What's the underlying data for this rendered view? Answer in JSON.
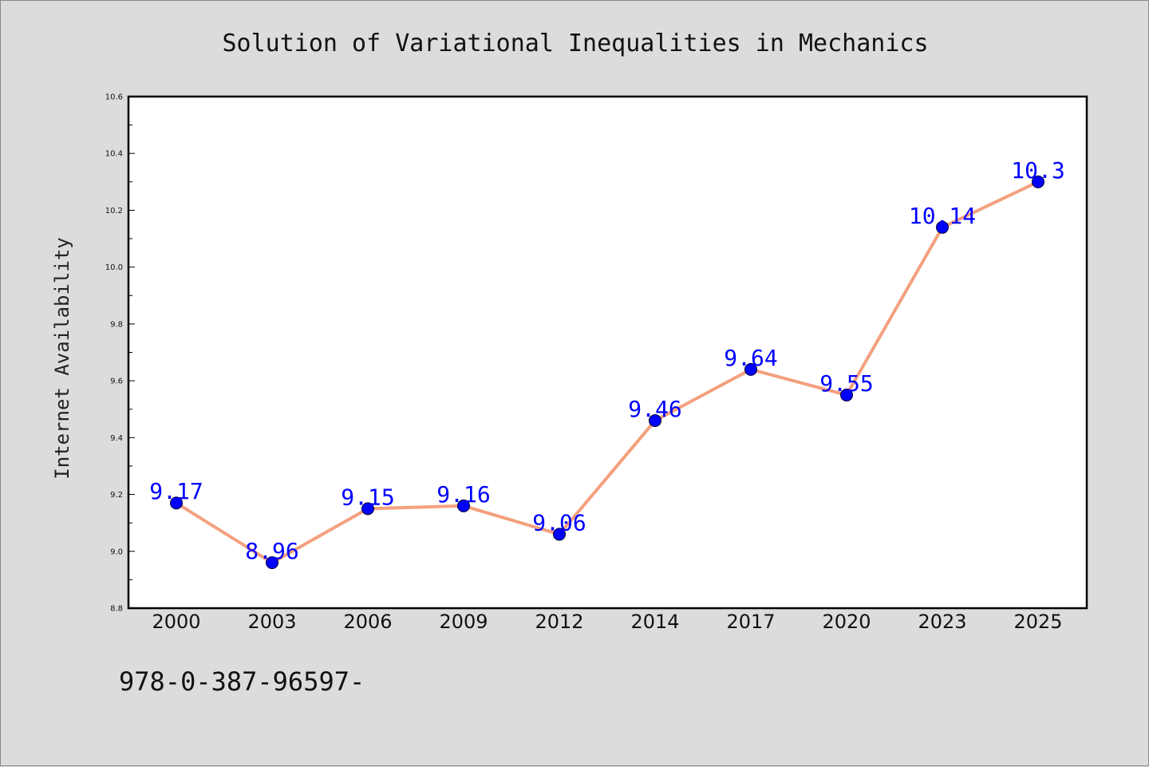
{
  "chart_data": {
    "type": "line",
    "title": "Solution of Variational Inequalities in Mechanics",
    "xlabel": "",
    "ylabel": "Internet Availability",
    "categories": [
      "2000",
      "2003",
      "2006",
      "2009",
      "2012",
      "2014",
      "2017",
      "2020",
      "2023",
      "2025"
    ],
    "series": [
      {
        "values": [
          9.17,
          8.96,
          9.15,
          9.16,
          9.06,
          9.46,
          9.64,
          9.55,
          10.14,
          10.3
        ],
        "labels": [
          "9.17",
          "8.96",
          "9.15",
          "9.16",
          "9.06",
          "9.46",
          "9.64",
          "9.55",
          "10.14",
          "10.3"
        ]
      }
    ],
    "ylim": [
      8.8,
      10.6
    ],
    "yticks": [
      "8.8",
      "9.0",
      "9.2",
      "9.4",
      "9.6",
      "9.8",
      "10.0",
      "10.2",
      "10.4",
      "10.6"
    ],
    "grid": false,
    "colors": {
      "line": "#f4a07e",
      "marker": "#0000ff",
      "label": "#0000ff",
      "background": "#dcdcdc",
      "plot_area": "#ffffff"
    }
  },
  "footer": {
    "text": "978-0-387-96597-"
  }
}
